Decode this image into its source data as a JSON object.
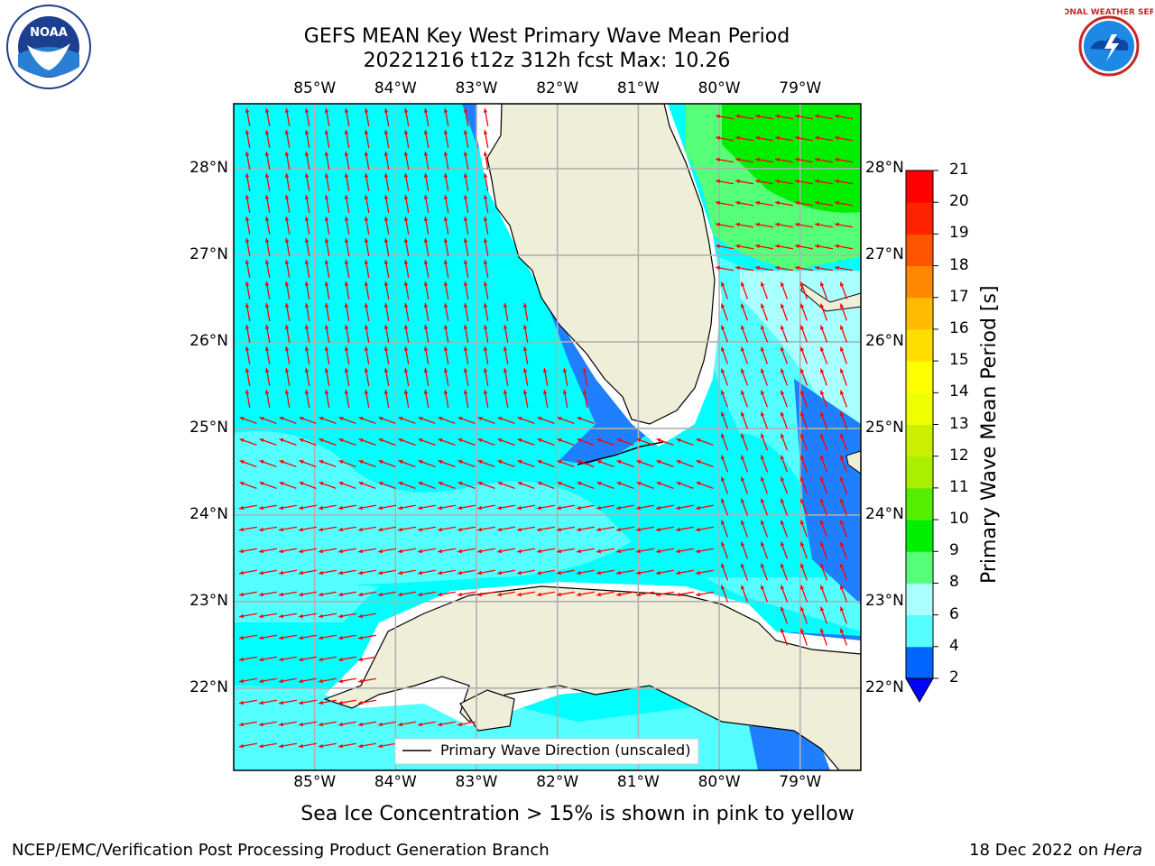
{
  "header": {
    "title_line1": "GEFS MEAN Key West Primary Wave Mean Period",
    "title_line2": "20221216 t12z 312h fcst   Max: 10.26"
  },
  "logos": {
    "left": "noaa-logo",
    "right": "national-weather-service-logo",
    "left_text": "NOAA",
    "right_text": "NATIONAL WEATHER SERVICE"
  },
  "map": {
    "lon_labels": [
      "85°W",
      "84°W",
      "83°W",
      "82°W",
      "81°W",
      "80°W",
      "79°W"
    ],
    "lat_labels": [
      "28°N",
      "27°N",
      "26°N",
      "25°N",
      "24°N",
      "23°N",
      "22°N"
    ],
    "lon_range": [
      -86.0,
      -78.25
    ],
    "lat_range": [
      21.05,
      28.75
    ],
    "legend_label": "Primary Wave Direction (unscaled)",
    "arrow_color": "#ff0000"
  },
  "colorbar": {
    "label": "Primary Wave Mean Period [s]",
    "ticks": [
      "2",
      "4",
      "6",
      "8",
      "9",
      "10",
      "11",
      "12",
      "13",
      "14",
      "15",
      "16",
      "17",
      "18",
      "19",
      "20",
      "21"
    ],
    "colors": [
      "#0066ff",
      "#00ffff",
      "#55ffff",
      "#aaffff",
      "#55ff77",
      "#00ee00",
      "#55ee00",
      "#aaee00",
      "#ccee00",
      "#eeff00",
      "#ffff00",
      "#ffdd00",
      "#ffbb00",
      "#ff8800",
      "#ff5500",
      "#ff2200",
      "#ff0000"
    ],
    "under_color": "#0000ff"
  },
  "caption": "Sea Ice Concentration > 15% is shown in pink to yellow",
  "footer": {
    "left": "NCEP/EMC/Verification Post Processing Product Generation Branch",
    "right_prefix": "18 Dec 2022 on ",
    "right_italic": "Hera"
  }
}
